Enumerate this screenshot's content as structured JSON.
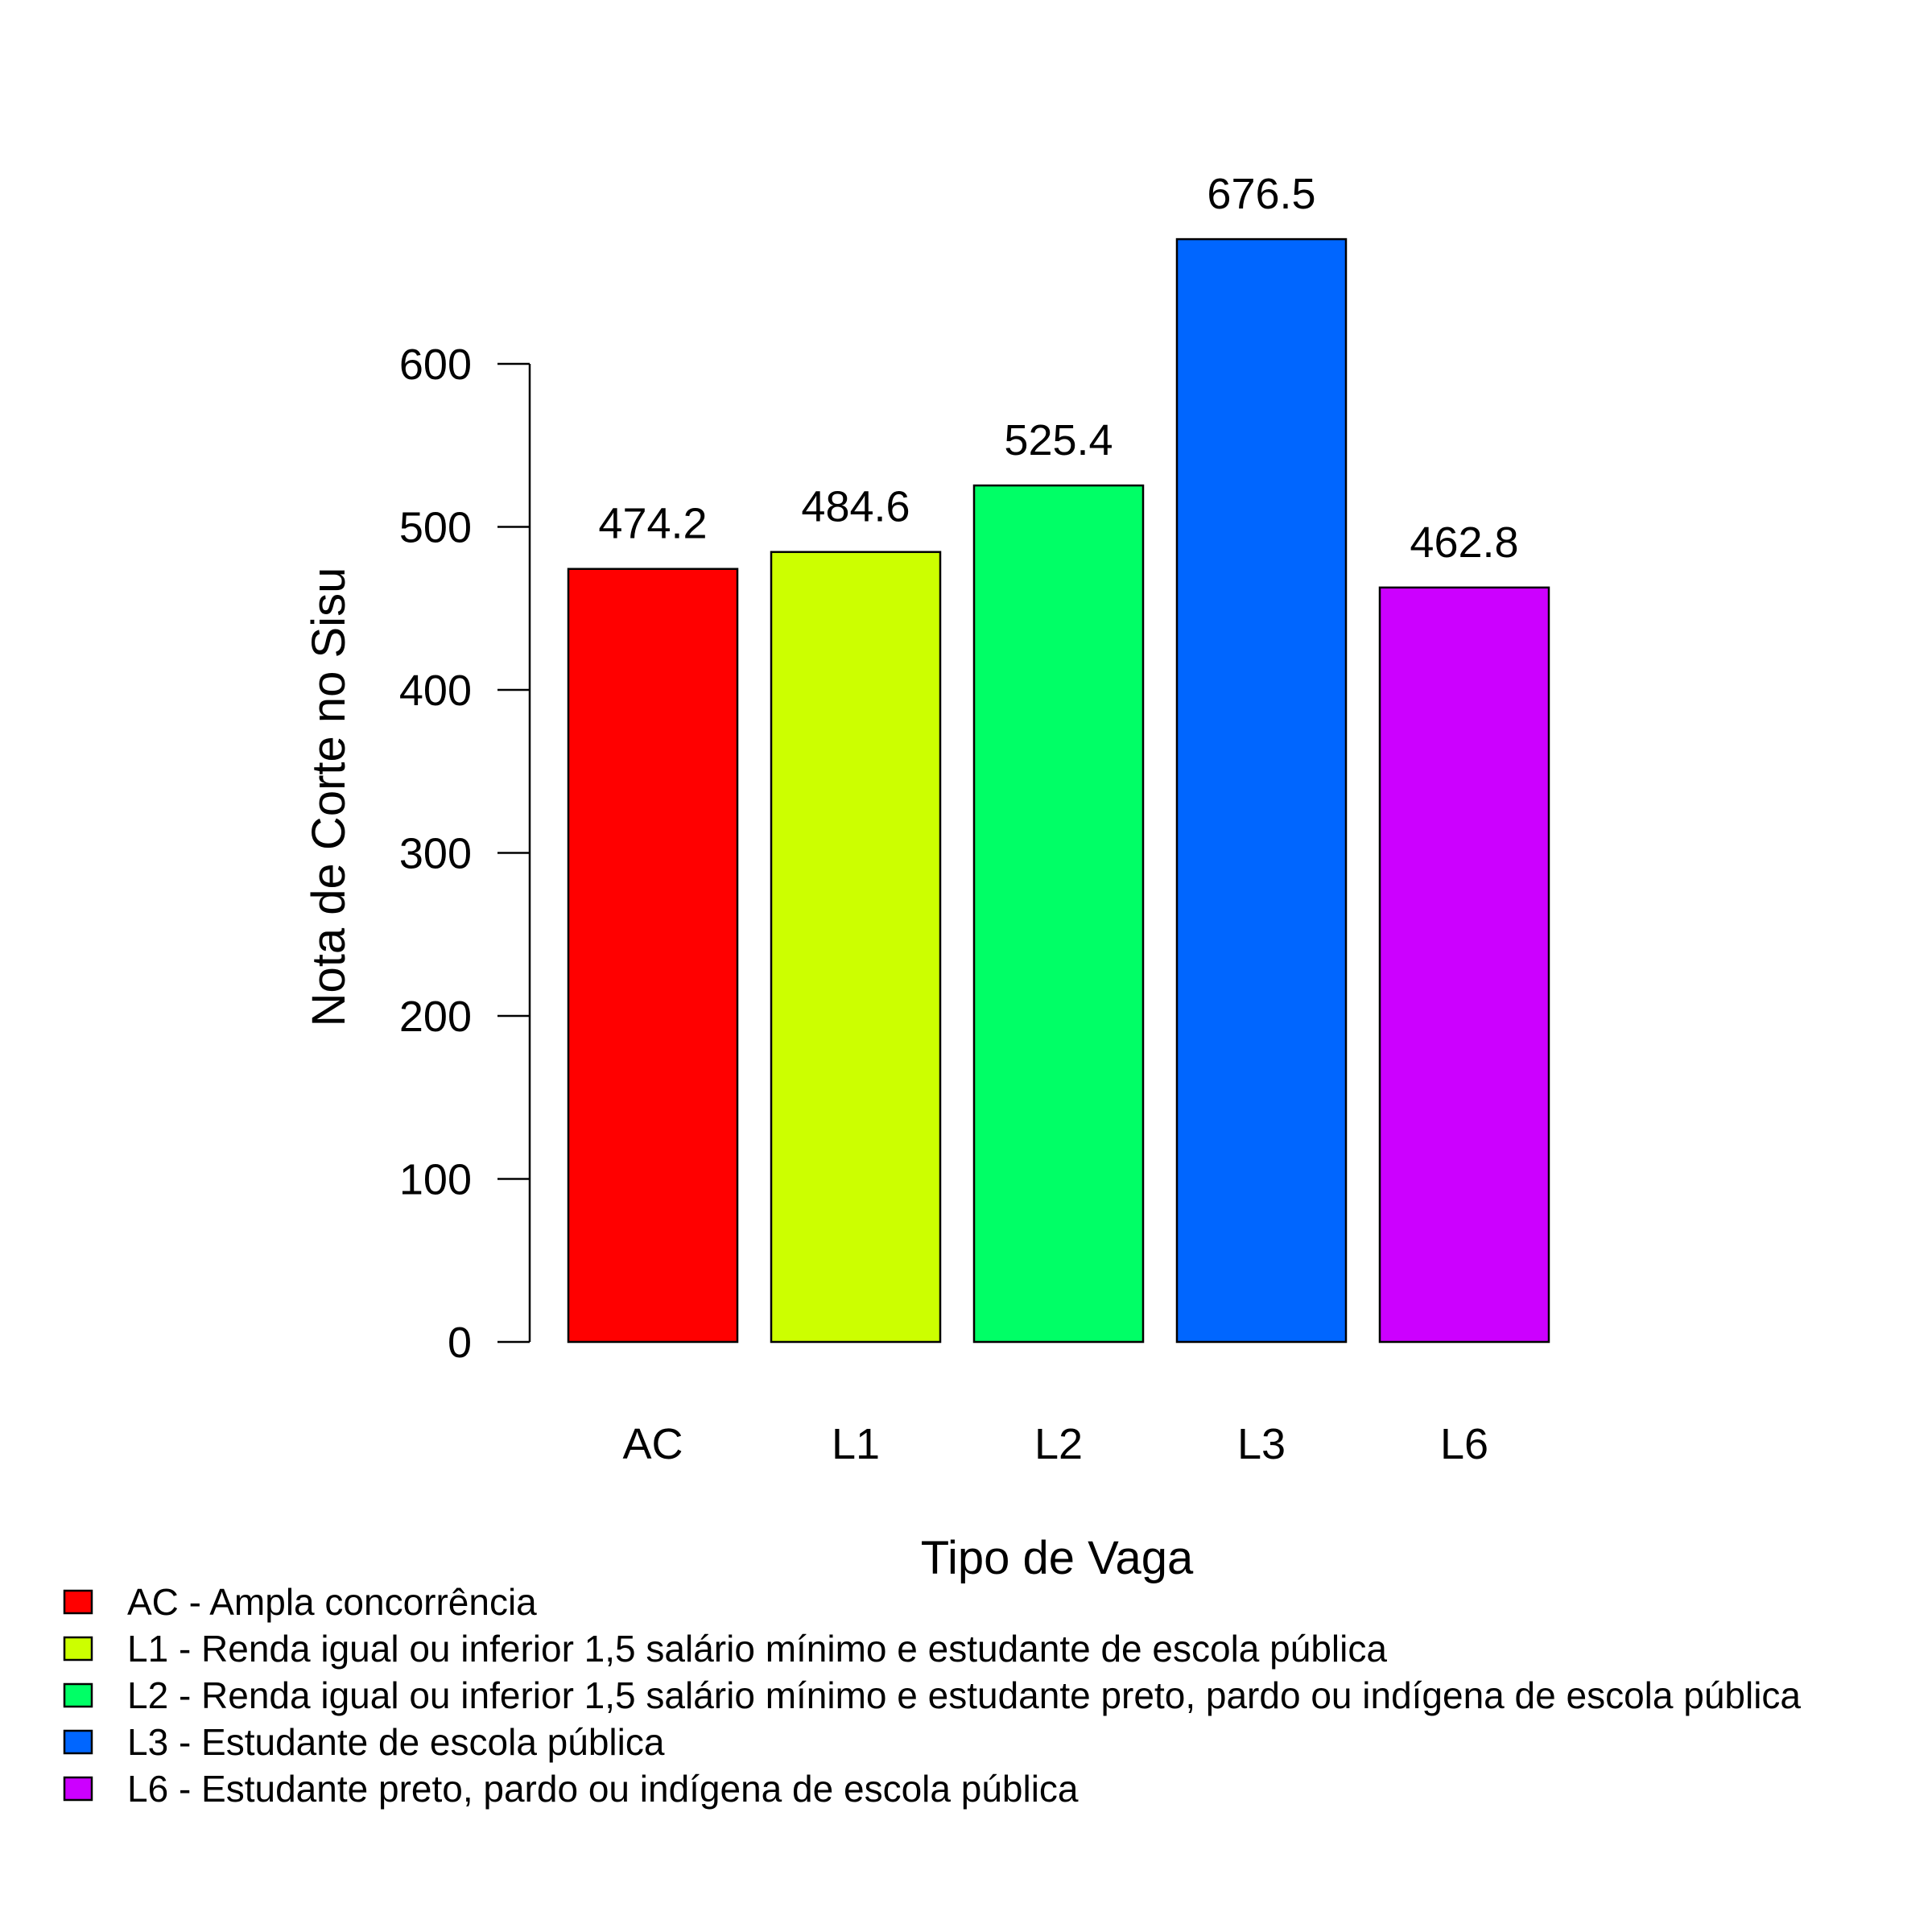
{
  "chart_data": {
    "type": "bar",
    "categories": [
      "AC",
      "L1",
      "L2",
      "L3",
      "L6"
    ],
    "values": [
      474.2,
      484.6,
      525.4,
      676.5,
      462.8
    ],
    "data_labels": [
      "474.2",
      "484.6",
      "525.4",
      "676.5",
      "462.8"
    ],
    "colors": [
      "#FF0000",
      "#CCFF00",
      "#00FF66",
      "#0066FF",
      "#CC00FF"
    ],
    "title": "",
    "xlabel": "Tipo de Vaga",
    "ylabel": "Nota de Corte no Sisu",
    "ylim": [
      0,
      600
    ],
    "yticks": [
      0,
      100,
      200,
      300,
      400,
      500,
      600
    ],
    "grid": false,
    "legend_position": "bottom-left",
    "legend": [
      {
        "label": "AC - Ampla concorrência",
        "color": "#FF0000"
      },
      {
        "label": "L1 - Renda igual ou inferior 1,5 salário mínimo e estudante de escola pública",
        "color": "#CCFF00"
      },
      {
        "label": "L2 - Renda igual ou inferior 1,5 salário mínimo e estudante preto, pardo ou indígena de escola pública",
        "color": "#00FF66"
      },
      {
        "label": "L3 - Estudante de escola pública",
        "color": "#0066FF"
      },
      {
        "label": "L6 - Estudante preto, pardo ou indígena de escola pública",
        "color": "#CC00FF"
      }
    ]
  }
}
